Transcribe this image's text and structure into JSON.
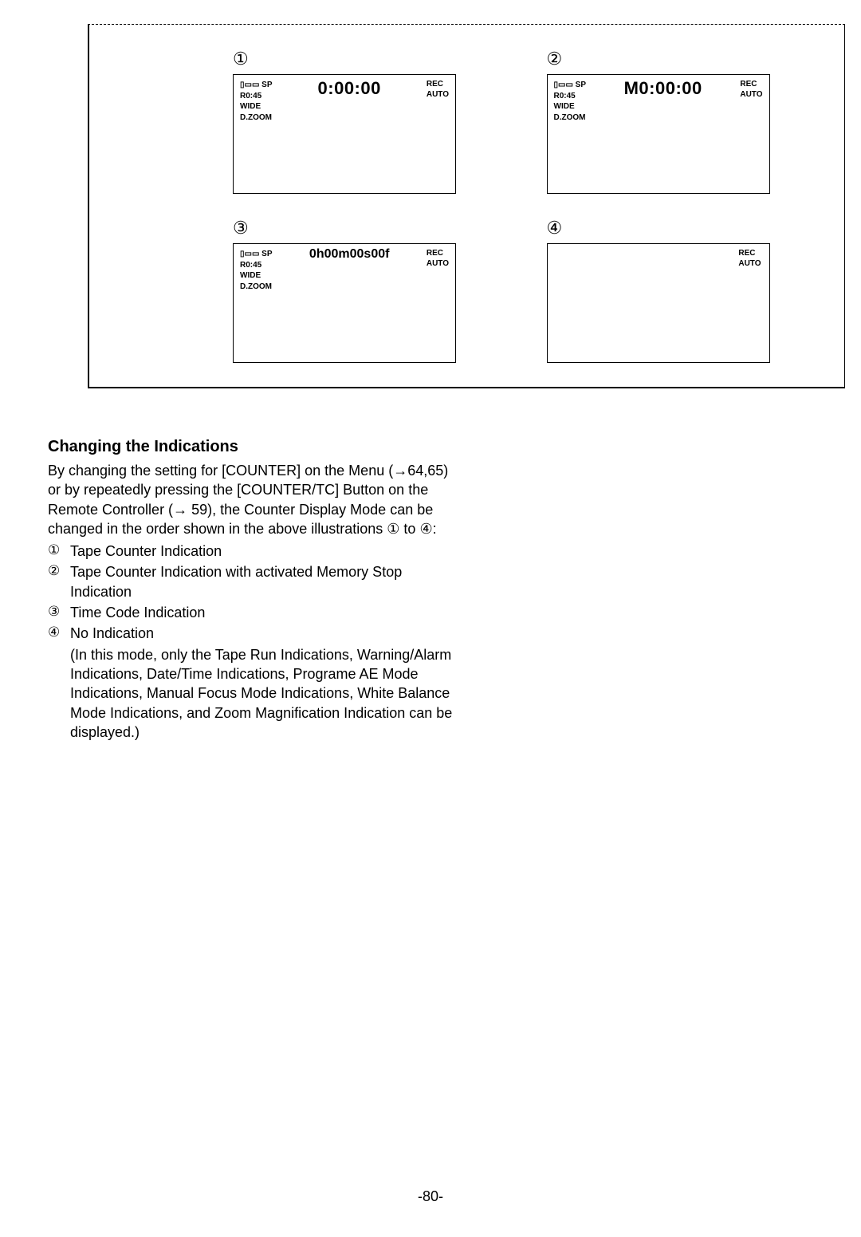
{
  "diagram": {
    "labels": {
      "n1": "①",
      "n2": "②",
      "n3": "③",
      "n4": "④"
    },
    "panels": {
      "p1": {
        "left": {
          "l1": "▯▭▭ SP",
          "l2": "R0:45",
          "l3": "WIDE",
          "l4": "D.ZOOM"
        },
        "counter": "0:00:00",
        "right": {
          "r1": "REC",
          "r2": "AUTO"
        }
      },
      "p2": {
        "left": {
          "l1": "▯▭▭ SP",
          "l2": "R0:45",
          "l3": "WIDE",
          "l4": "D.ZOOM"
        },
        "counter": "M0:00:00",
        "right": {
          "r1": "REC",
          "r2": "AUTO"
        }
      },
      "p3": {
        "left": {
          "l1": "▯▭▭ SP",
          "l2": "R0:45",
          "l3": "WIDE",
          "l4": "D.ZOOM"
        },
        "counter": "0h00m00s00f",
        "right": {
          "r1": "REC",
          "r2": "AUTO"
        }
      },
      "p4": {
        "right": {
          "r1": "REC",
          "r2": "AUTO"
        }
      }
    }
  },
  "text": {
    "heading": "Changing the Indications",
    "para1a": "By changing the setting for [COUNTER] on the Menu (",
    "para1b": "64,65) or by repeatedly pressing the [COUNTER/TC] Button on the Remote Controller (",
    "para1c": " 59), the Counter Display Mode can be changed in the order shown in the above illustrations ",
    "para1d": " to ",
    "para1e": ":",
    "arrow": "→",
    "circ1": "①",
    "circ2": "②",
    "circ3": "③",
    "circ4": "④",
    "items": {
      "i1": "Tape Counter Indication",
      "i2": "Tape Counter Indication with activated Memory Stop Indication",
      "i3": "Time Code Indication",
      "i4": "No Indication"
    },
    "note": "(In this mode, only the Tape Run Indications, Warning/Alarm Indications, Date/Time Indications, Programe AE Mode Indications, Manual Focus Mode Indications, White Balance Mode Indications, and Zoom Magnification Indication can be displayed.)"
  },
  "pageNumber": "-80-"
}
